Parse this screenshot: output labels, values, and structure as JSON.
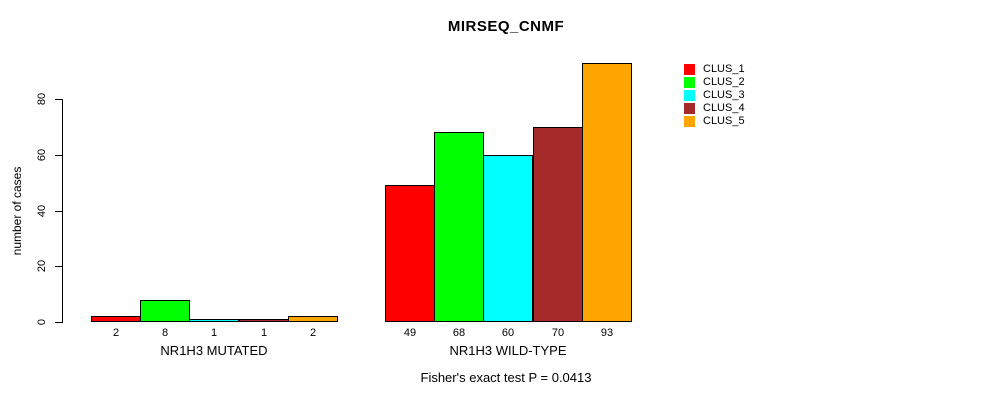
{
  "chart_data": {
    "type": "bar",
    "title": "MIRSEQ_CNMF",
    "ylabel": "number of cases",
    "xlabel": "",
    "categories": [
      "NR1H3 MUTATED",
      "NR1H3 WILD-TYPE"
    ],
    "series": [
      {
        "name": "CLUS_1",
        "color": "#FF0000",
        "values": [
          2,
          49
        ]
      },
      {
        "name": "CLUS_2",
        "color": "#00FF00",
        "values": [
          8,
          68
        ]
      },
      {
        "name": "CLUS_3",
        "color": "#00FFFF",
        "values": [
          1,
          60
        ]
      },
      {
        "name": "CLUS_4",
        "color": "#A52A2A",
        "values": [
          1,
          70
        ]
      },
      {
        "name": "CLUS_5",
        "color": "#FFA500",
        "values": [
          2,
          93
        ]
      }
    ],
    "yticks": [
      0,
      20,
      40,
      60,
      80
    ],
    "ylim": [
      0,
      93
    ],
    "grid": false,
    "legend_position": "right",
    "bar_value_labels": true,
    "annotation": "Fisher's exact test P = 0.0413"
  }
}
